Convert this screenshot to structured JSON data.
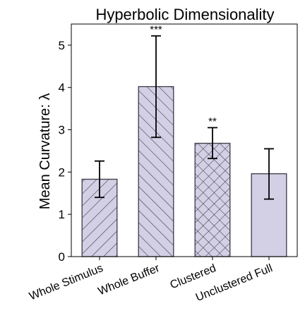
{
  "chart_data": {
    "type": "bar",
    "title": "Hyperbolic Dimensionality",
    "xlabel": "",
    "ylabel": "Mean Curvature: λ",
    "ylim": [
      0,
      5.5
    ],
    "yticks": [
      0,
      1,
      2,
      3,
      4,
      5
    ],
    "grid": false,
    "legend": "none",
    "categories": [
      "Whole Stimulus",
      "Whole Buffer",
      "Clustered",
      "Unclustered Full"
    ],
    "values": [
      1.83,
      4.02,
      2.68,
      1.96
    ],
    "error_low": [
      1.4,
      2.82,
      2.32,
      1.36
    ],
    "error_high": [
      2.26,
      5.22,
      3.05,
      2.55
    ],
    "annotations": [
      "",
      "***",
      "**",
      ""
    ],
    "hatches": [
      "diagonal-up",
      "diagonal-down",
      "crosshatch",
      "none"
    ],
    "bar_color": "#d3d0e6",
    "edge_color": "#3a3a48"
  }
}
